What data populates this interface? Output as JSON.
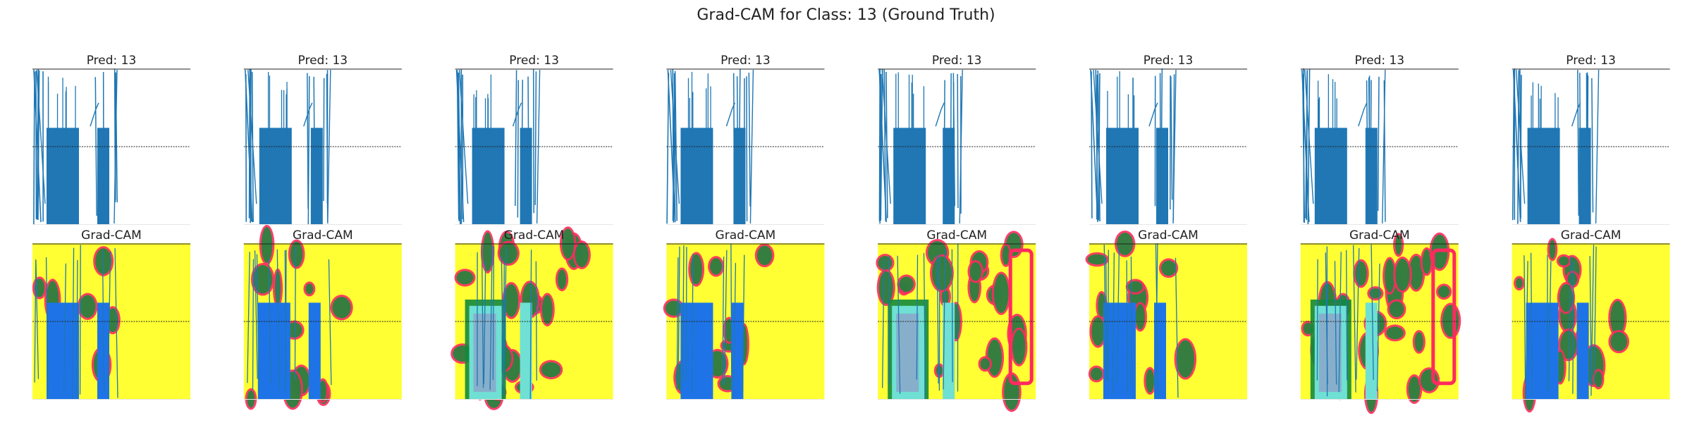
{
  "figure": {
    "suptitle": "Grad-CAM for Class: 13 (Ground Truth)"
  },
  "colors": {
    "signal": "#1f77b4",
    "bar_fill": "#2077b4",
    "cam_background": "#ffff33",
    "cam_block": "#1e74e6",
    "cam_hot": "#ff2a5f",
    "cam_green": "#138a3c",
    "cam_cyan": "#6fe0d3",
    "cam_violet": "#9a86c4",
    "threshold_line": "#222222"
  },
  "chart_data": [
    {
      "type": "line",
      "row": "prediction",
      "title": "Pred: 13",
      "predicted_class": 13,
      "cam_intensity": 0.0
    },
    {
      "type": "line",
      "row": "prediction",
      "title": "Pred: 13",
      "predicted_class": 13,
      "cam_intensity": 0.0
    },
    {
      "type": "line",
      "row": "prediction",
      "title": "Pred: 13",
      "predicted_class": 13,
      "cam_intensity": 0.0
    },
    {
      "type": "line",
      "row": "prediction",
      "title": "Pred: 13",
      "predicted_class": 13,
      "cam_intensity": 0.0
    },
    {
      "type": "line",
      "row": "prediction",
      "title": "Pred: 13",
      "predicted_class": 13,
      "cam_intensity": 0.0
    },
    {
      "type": "line",
      "row": "prediction",
      "title": "Pred: 13",
      "predicted_class": 13,
      "cam_intensity": 0.0
    },
    {
      "type": "line",
      "row": "prediction",
      "title": "Pred: 13",
      "predicted_class": 13,
      "cam_intensity": 0.0
    },
    {
      "type": "line",
      "row": "prediction",
      "title": "Pred: 13",
      "predicted_class": 13,
      "cam_intensity": 0.0
    },
    {
      "type": "heatmap",
      "row": "gradcam",
      "title": "Grad-CAM",
      "cam_intensity": 0.1
    },
    {
      "type": "heatmap",
      "row": "gradcam",
      "title": "Grad-CAM",
      "cam_intensity": 0.35
    },
    {
      "type": "heatmap",
      "row": "gradcam",
      "title": "Grad-CAM",
      "cam_intensity": 0.8
    },
    {
      "type": "heatmap",
      "row": "gradcam",
      "title": "Grad-CAM",
      "cam_intensity": 0.3
    },
    {
      "type": "heatmap",
      "row": "gradcam",
      "title": "Grad-CAM",
      "cam_intensity": 0.85
    },
    {
      "type": "heatmap",
      "row": "gradcam",
      "title": "Grad-CAM",
      "cam_intensity": 0.3
    },
    {
      "type": "heatmap",
      "row": "gradcam",
      "title": "Grad-CAM",
      "cam_intensity": 0.95
    },
    {
      "type": "heatmap",
      "row": "gradcam",
      "title": "Grad-CAM",
      "cam_intensity": 0.55
    }
  ]
}
